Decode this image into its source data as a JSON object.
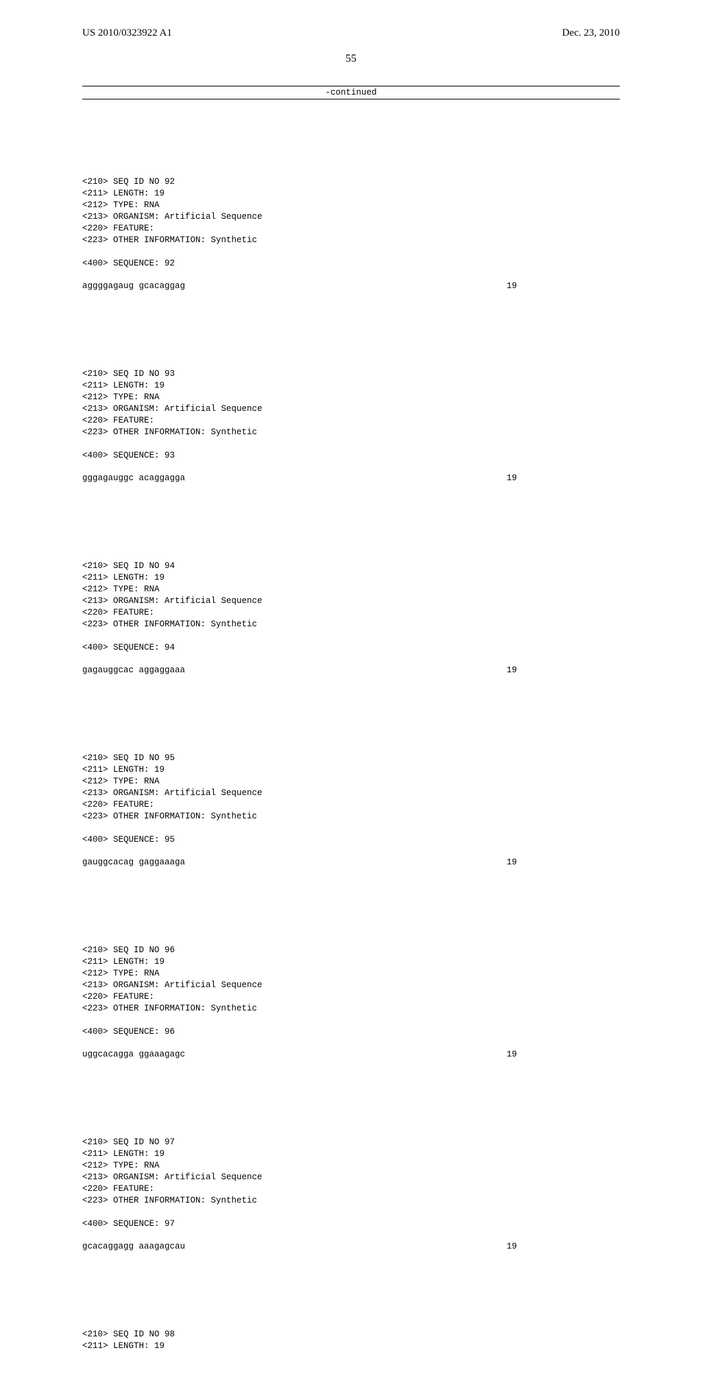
{
  "header": {
    "publication_number": "US 2010/0323922 A1",
    "publication_date": "Dec. 23, 2010"
  },
  "page_number": "55",
  "continued_label": "-continued",
  "sequences": [
    {
      "id": "92",
      "length": "19",
      "type": "RNA",
      "organism": "Artificial Sequence",
      "other_info": "Synthetic",
      "sequence": "aggggagaug gcacaggag",
      "seqlen": "19"
    },
    {
      "id": "93",
      "length": "19",
      "type": "RNA",
      "organism": "Artificial Sequence",
      "other_info": "Synthetic",
      "sequence": "gggagauggc acaggagga",
      "seqlen": "19"
    },
    {
      "id": "94",
      "length": "19",
      "type": "RNA",
      "organism": "Artificial Sequence",
      "other_info": "Synthetic",
      "sequence": "gagauggcac aggaggaaa",
      "seqlen": "19"
    },
    {
      "id": "95",
      "length": "19",
      "type": "RNA",
      "organism": "Artificial Sequence",
      "other_info": "Synthetic",
      "sequence": "gauggcacag gaggaaaga",
      "seqlen": "19"
    },
    {
      "id": "96",
      "length": "19",
      "type": "RNA",
      "organism": "Artificial Sequence",
      "other_info": "Synthetic",
      "sequence": "uggcacagga ggaaagagc",
      "seqlen": "19"
    },
    {
      "id": "97",
      "length": "19",
      "type": "RNA",
      "organism": "Artificial Sequence",
      "other_info": "Synthetic",
      "sequence": "gcacaggagg aaagagcau",
      "seqlen": "19"
    }
  ],
  "trailing": {
    "id": "98",
    "length": "19"
  },
  "labels": {
    "seq_id_prefix": "<210> SEQ ID NO ",
    "length_prefix": "<211> LENGTH: ",
    "type_prefix": "<212> TYPE: ",
    "organism_prefix": "<213> ORGANISM: ",
    "feature_line": "<220> FEATURE:",
    "other_info_prefix": "<223> OTHER INFORMATION: ",
    "sequence_prefix": "<400> SEQUENCE: "
  }
}
